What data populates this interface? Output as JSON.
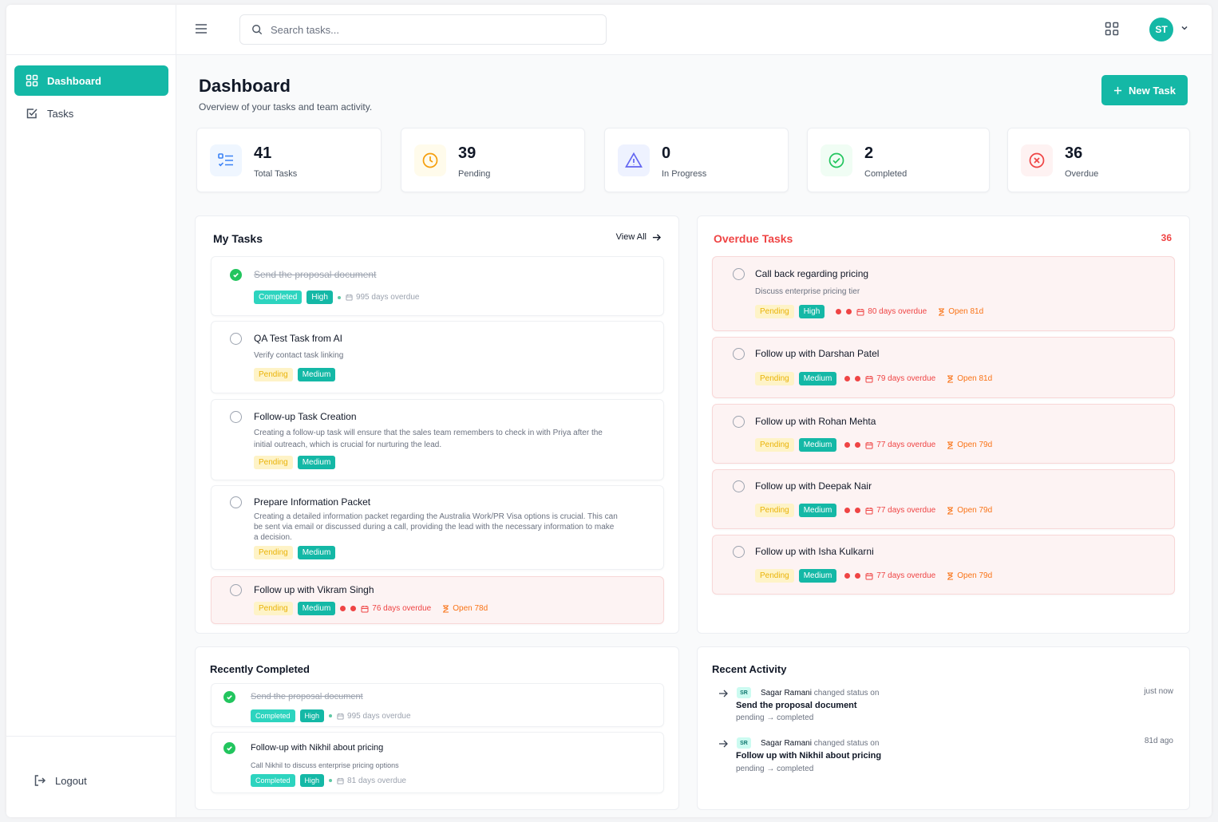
{
  "search": {
    "placeholder": "Search tasks..."
  },
  "user": {
    "initials": "ST"
  },
  "sidebar": {
    "items": [
      {
        "label": "Dashboard",
        "icon": "dashboard-icon",
        "active": true
      },
      {
        "label": "Tasks",
        "icon": "check-square-icon",
        "active": false
      }
    ],
    "logout_label": "Logout"
  },
  "page": {
    "title": "Dashboard",
    "subtitle": "Overview of your tasks and team activity.",
    "new_task_label": "New Task"
  },
  "stats": [
    {
      "value": "41",
      "label": "Total Tasks",
      "icon": "list-icon",
      "color": "#3b82f6"
    },
    {
      "value": "39",
      "label": "Pending",
      "icon": "clock-icon",
      "color": "#f59e0b"
    },
    {
      "value": "0",
      "label": "In Progress",
      "icon": "warning-icon",
      "color": "#6366f1"
    },
    {
      "value": "2",
      "label": "Completed",
      "icon": "check-circle-icon",
      "color": "#22c55e"
    },
    {
      "value": "36",
      "label": "Overdue",
      "icon": "x-circle-icon",
      "color": "#ef4444"
    }
  ],
  "my_tasks": {
    "title": "My Tasks",
    "view_all_label": "View All",
    "items": [
      {
        "title": "Send the proposal document",
        "status": "Completed",
        "priority": "High",
        "overdue": "995 days overdue"
      },
      {
        "title": "QA Test Task from AI",
        "desc": "Verify contact task linking",
        "status": "Pending",
        "priority": "Medium"
      },
      {
        "title": "Follow-up Task Creation",
        "desc1": "Creating a follow-up task will ensure that the sales team remembers to check in with Priya after the",
        "desc2": "initial outreach, which is crucial for nurturing the lead.",
        "status": "Pending",
        "priority": "Medium"
      },
      {
        "title": "Prepare Information Packet",
        "desc1": "Creating a detailed information packet regarding the Australia Work/PR Visa options is crucial. This can",
        "desc2": "be sent via email or discussed during a call, providing the lead with the necessary information to make",
        "desc3": "a decision.",
        "status": "Pending",
        "priority": "Medium"
      },
      {
        "title": "Follow up with Vikram Singh",
        "status": "Pending",
        "priority": "Medium",
        "overdue": "76 days overdue",
        "open": "Open 78d"
      }
    ]
  },
  "overdue": {
    "title": "Overdue Tasks",
    "count": "36",
    "items": [
      {
        "title": "Call back regarding pricing",
        "desc": "Discuss enterprise pricing tier",
        "status": "Pending",
        "priority": "High",
        "overdue": "80 days overdue",
        "open": "Open 81d"
      },
      {
        "title": "Follow up with Darshan Patel",
        "status": "Pending",
        "priority": "Medium",
        "overdue": "79 days overdue",
        "open": "Open 81d"
      },
      {
        "title": "Follow up with Rohan Mehta",
        "status": "Pending",
        "priority": "Medium",
        "overdue": "77 days overdue",
        "open": "Open 79d"
      },
      {
        "title": "Follow up with Deepak Nair",
        "status": "Pending",
        "priority": "Medium",
        "overdue": "77 days overdue",
        "open": "Open 79d"
      },
      {
        "title": "Follow up with Isha Kulkarni",
        "status": "Pending",
        "priority": "Medium",
        "overdue": "77 days overdue",
        "open": "Open 79d"
      }
    ]
  },
  "recently_completed": {
    "title": "Recently Completed",
    "items": [
      {
        "title": "Send the proposal document",
        "status": "Completed",
        "priority": "High",
        "overdue": "995 days overdue"
      },
      {
        "title": "Follow-up with Nikhil about pricing",
        "desc": "Call Nikhil to discuss enterprise pricing options",
        "status": "Completed",
        "priority": "High",
        "overdue": "81 days overdue"
      }
    ]
  },
  "recent_activity": {
    "title": "Recent Activity",
    "items": [
      {
        "initials": "SR",
        "user": "Sagar Ramani",
        "action": "changed status on",
        "task": "Send the proposal document",
        "change": "pending → completed",
        "time": "just now"
      },
      {
        "initials": "SR",
        "user": "Sagar Ramani",
        "action": "changed status on",
        "task": "Follow up with Nikhil about pricing",
        "change": "pending → completed",
        "time": "81d ago"
      }
    ]
  }
}
